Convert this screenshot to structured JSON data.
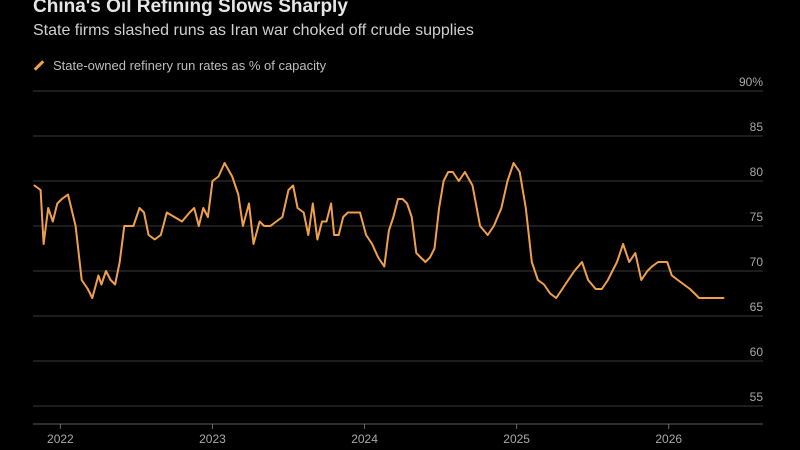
{
  "title": "China's Oil Refining Slows Sharply",
  "subtitle": "State firms slashed runs as Iran war choked off crude supplies",
  "colors": {
    "background": "#000000",
    "line": "#f0a04b",
    "grid": "#3a3a3a",
    "text": "#cccccc"
  },
  "chart_data": {
    "type": "line",
    "legend": "State-owned refinery run rates as % of capacity",
    "legend_position": "top-left",
    "grid": true,
    "y_axis_side": "right",
    "ylim": [
      53,
      90
    ],
    "y_ticks": [
      90,
      85,
      80,
      75,
      70,
      65,
      60,
      55
    ],
    "y_tick_labels": [
      "90%",
      "85",
      "80",
      "75",
      "70",
      "65",
      "60",
      "55"
    ],
    "x_range": [
      2021.82,
      2026.62
    ],
    "x_ticks": [
      2022,
      2023,
      2024,
      2025,
      2026
    ],
    "x_tick_labels": [
      "2022",
      "2023",
      "2024",
      "2025",
      "2026"
    ],
    "series": [
      {
        "name": "State-owned refinery run rates as % of capacity",
        "x": [
          2021.83,
          2021.87,
          2021.89,
          2021.92,
          2021.95,
          2021.98,
          2022.01,
          2022.05,
          2022.1,
          2022.14,
          2022.18,
          2022.21,
          2022.25,
          2022.27,
          2022.3,
          2022.33,
          2022.36,
          2022.39,
          2022.42,
          2022.45,
          2022.48,
          2022.52,
          2022.55,
          2022.58,
          2022.62,
          2022.66,
          2022.7,
          2022.75,
          2022.8,
          2022.85,
          2022.88,
          2022.91,
          2022.94,
          2022.97,
          2023.0,
          2023.04,
          2023.08,
          2023.13,
          2023.17,
          2023.2,
          2023.24,
          2023.27,
          2023.31,
          2023.34,
          2023.38,
          2023.42,
          2023.46,
          2023.5,
          2023.53,
          2023.56,
          2023.6,
          2023.63,
          2023.66,
          2023.69,
          2023.72,
          2023.75,
          2023.78,
          2023.8,
          2023.83,
          2023.86,
          2023.89,
          2023.93,
          2023.97,
          2024.01,
          2024.05,
          2024.09,
          2024.13,
          2024.16,
          2024.19,
          2024.22,
          2024.25,
          2024.28,
          2024.31,
          2024.34,
          2024.37,
          2024.4,
          2024.43,
          2024.46,
          2024.49,
          2024.52,
          2024.55,
          2024.58,
          2024.62,
          2024.66,
          2024.71,
          2024.76,
          2024.81,
          2024.85,
          2024.9,
          2024.94,
          2024.98,
          2025.02,
          2025.06,
          2025.1,
          2025.14,
          2025.18,
          2025.22,
          2025.26,
          2025.3,
          2025.34,
          2025.38,
          2025.43,
          2025.47,
          2025.52,
          2025.56,
          2025.6,
          2025.63,
          2025.66,
          2025.7,
          2025.74,
          2025.78,
          2025.82,
          2025.86,
          2025.89,
          2025.93,
          2025.96,
          2025.99,
          2026.02,
          2026.06,
          2026.1,
          2026.14,
          2026.17,
          2026.2,
          2026.22,
          2026.25,
          2026.28,
          2026.32,
          2026.36
        ],
        "y": [
          79.5,
          79,
          73,
          77,
          75.5,
          77.5,
          78,
          78.5,
          75,
          69,
          68,
          67,
          69.5,
          68.5,
          70,
          69,
          68.5,
          71,
          75,
          75,
          75,
          77,
          76.5,
          74,
          73.5,
          74,
          76.5,
          76,
          75.5,
          76.5,
          77,
          75,
          77,
          76,
          80,
          80.5,
          82,
          80.5,
          78.5,
          75,
          77.5,
          73,
          75.5,
          75,
          75,
          75.5,
          76,
          79,
          79.5,
          77,
          76.5,
          74,
          77.5,
          73.5,
          75.5,
          75.5,
          77.5,
          74,
          74,
          76,
          76.5,
          76.5,
          76.5,
          74,
          73,
          71.5,
          70.5,
          74.5,
          76,
          78,
          78,
          77.5,
          76,
          72,
          71.5,
          71,
          71.5,
          72.5,
          77,
          80,
          81,
          81,
          80,
          81,
          79.5,
          75,
          74,
          75,
          77,
          80,
          82,
          81,
          77,
          71,
          69,
          68.5,
          67.5,
          67,
          68,
          69,
          70,
          71,
          69,
          68,
          68,
          69,
          70,
          71,
          73,
          71,
          72,
          69,
          70,
          70.5,
          71,
          71,
          71,
          69.5,
          69,
          68.5,
          68,
          67.5,
          67,
          67,
          67,
          67,
          67,
          67
        ]
      }
    ]
  }
}
